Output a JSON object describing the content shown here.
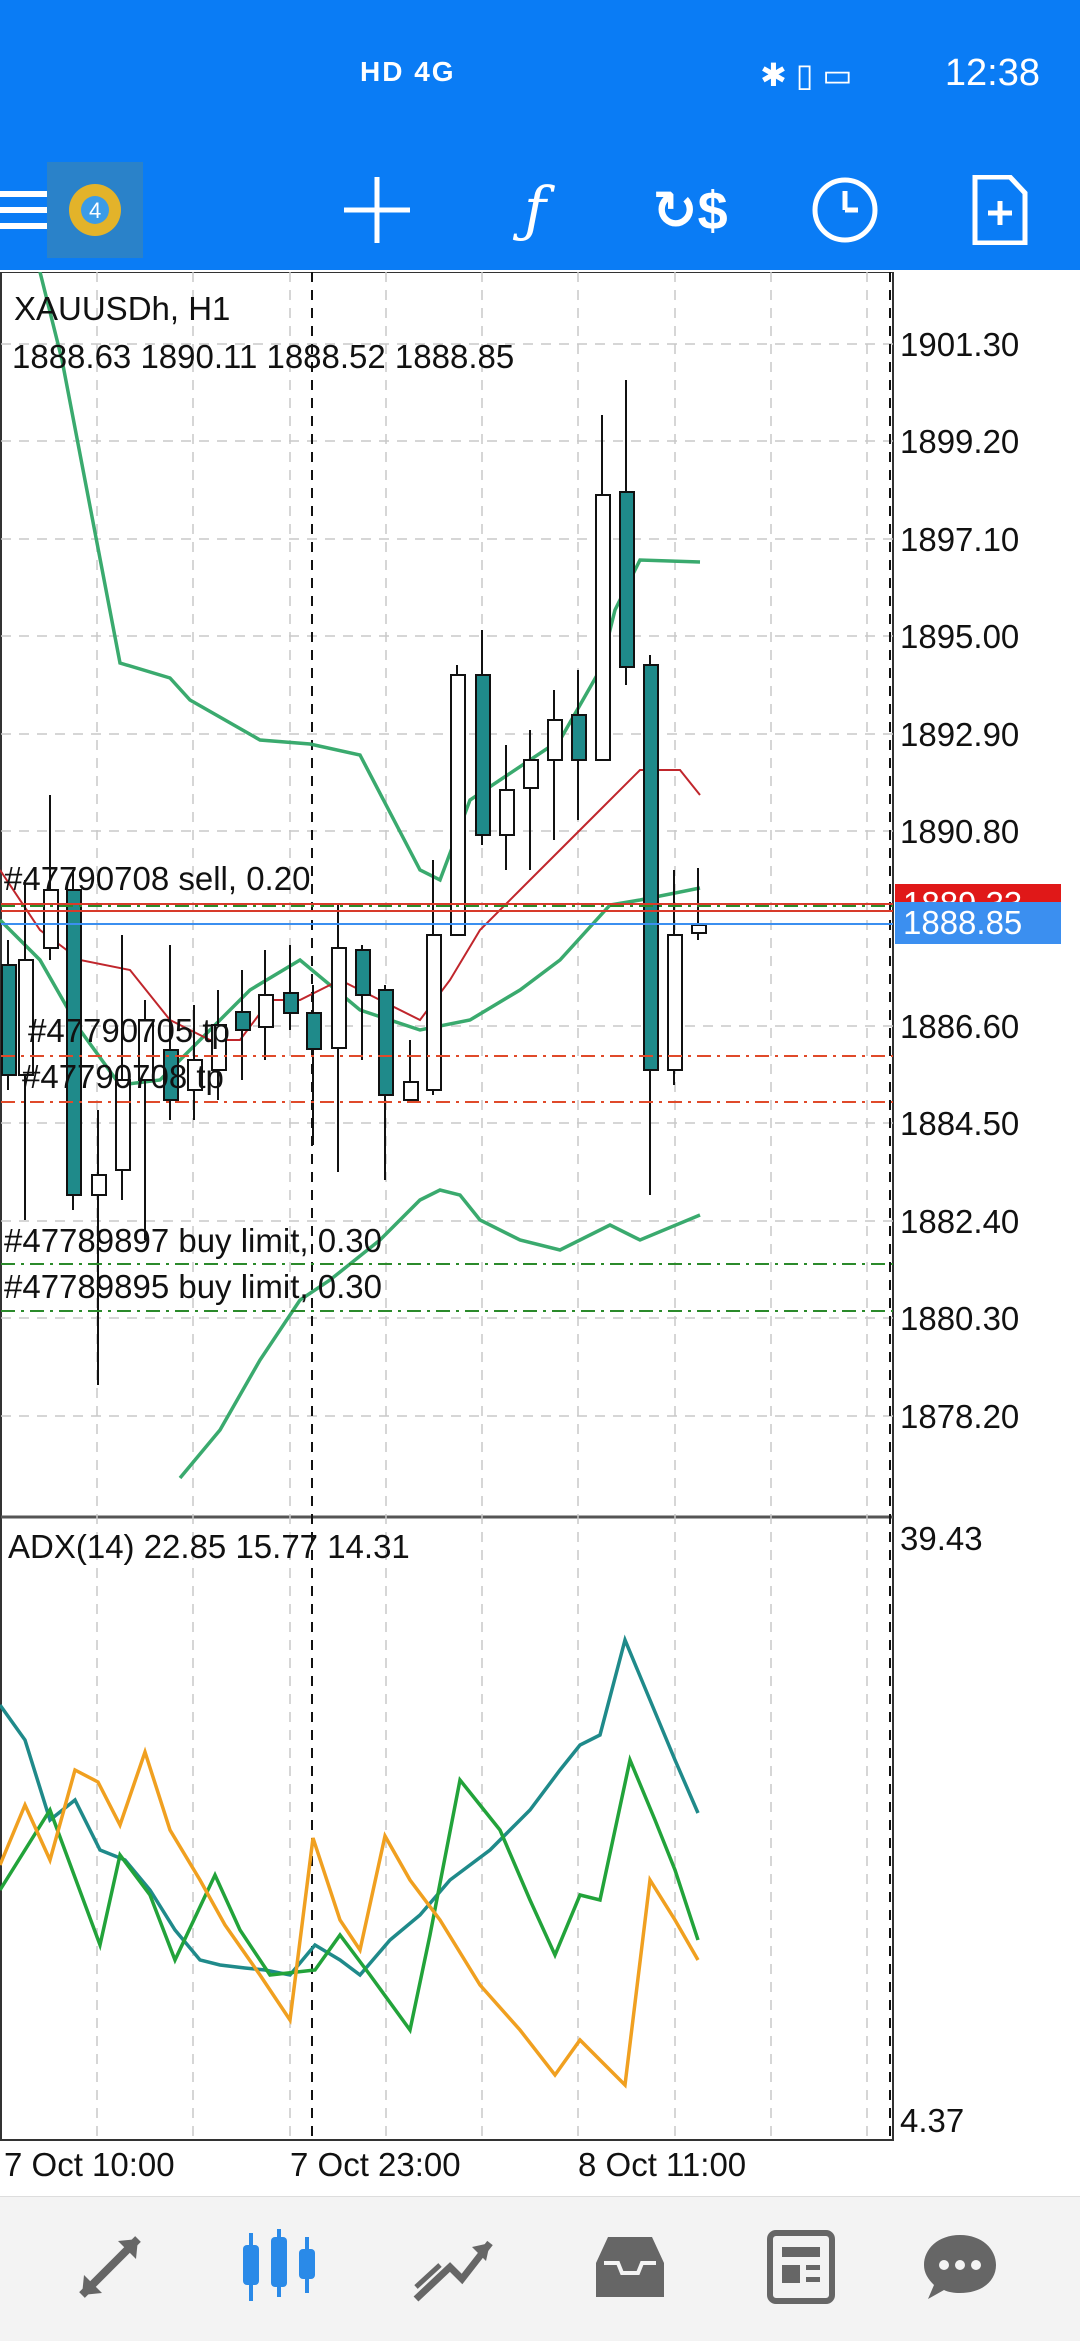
{
  "status_bar": {
    "network": "HD 4G",
    "time": "12:38"
  },
  "toolbar": {
    "items": [
      "menu-icon",
      "app-logo",
      "crosshair-icon",
      "function-icon",
      "trade-icon",
      "clock-icon",
      "new-order-icon"
    ]
  },
  "chart": {
    "symbol": "XAUUSDh, H1",
    "ohlc": "1888.63 1890.11 1888.52 1888.85",
    "price_axis": [
      "1901.30",
      "1899.20",
      "1897.10",
      "1895.00",
      "1892.90",
      "1890.80",
      "1886.60",
      "1884.50",
      "1882.40",
      "1880.30",
      "1878.20"
    ],
    "bid_label": "1888.85",
    "ask_label": "1889.33",
    "orders": [
      "#47790708 sell, 0.20",
      "#47790705 tp",
      "#47790708 tp",
      "#47789897 buy limit, 0.30",
      "#47789895 buy limit, 0.30"
    ],
    "indicator": {
      "label": "ADX(14) 22.85 15.77 14.31",
      "axis_max": "39.43",
      "axis_min": "4.37"
    },
    "time_axis": [
      "7 Oct 10:00",
      "7 Oct 23:00",
      "8 Oct 11:00"
    ],
    "colors": {
      "bull_body": "#ffffff",
      "bear_body": "#1f8a8a",
      "bollinger": "#3aaa6e",
      "ma": "#c0262c",
      "adx_main": "#1f8a8a",
      "adx_plus": "#22a33a",
      "adx_minus": "#f0a020",
      "sell_line": "#d83a2a",
      "buy_line": "#2b8a2b",
      "bid_bg": "#3b8ff0",
      "ask_bg": "#e01818"
    }
  },
  "bottom_nav": [
    "quotes-icon",
    "chart-icon",
    "trade-icon",
    "history-icon",
    "news-icon",
    "messages-icon"
  ]
}
